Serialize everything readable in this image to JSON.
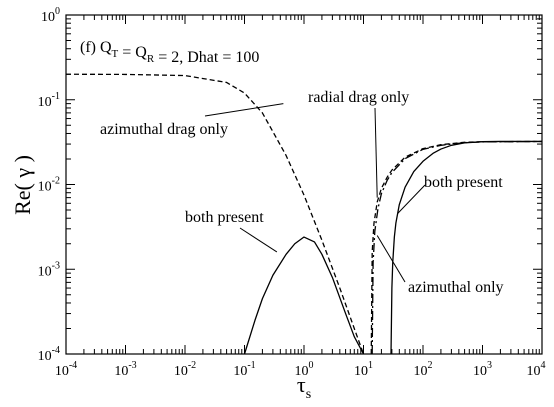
{
  "chart_data": {
    "type": "line",
    "panel_label": "(f) Q_T = Q_R = 2, Dhat = 100",
    "xlabel": "τ_s",
    "ylabel": "Re( γ )",
    "x_scale": "log",
    "y_scale": "log",
    "xlim": [
      0.0001,
      10000
    ],
    "ylim": [
      0.0001,
      1
    ],
    "x_ticks": [
      {
        "base": "10",
        "exp": "-4"
      },
      {
        "base": "10",
        "exp": "-3"
      },
      {
        "base": "10",
        "exp": "-2"
      },
      {
        "base": "10",
        "exp": "-1"
      },
      {
        "base": "10",
        "exp": "0"
      },
      {
        "base": "10",
        "exp": "1"
      },
      {
        "base": "10",
        "exp": "2"
      },
      {
        "base": "10",
        "exp": "3"
      },
      {
        "base": "10",
        "exp": "4"
      }
    ],
    "y_ticks": [
      {
        "base": "10",
        "exp": "-4"
      },
      {
        "base": "10",
        "exp": "-3"
      },
      {
        "base": "10",
        "exp": "-2"
      },
      {
        "base": "10",
        "exp": "-1"
      },
      {
        "base": "10",
        "exp": "0"
      }
    ],
    "grid": false,
    "series": [
      {
        "name": "azimuthal drag only",
        "style": "dashed",
        "x": [
          0.0001,
          0.001,
          0.01,
          0.05,
          0.1,
          0.2,
          0.5,
          1,
          2,
          4,
          7,
          10
        ],
        "y": [
          0.2,
          0.199,
          0.193,
          0.16,
          0.12,
          0.07,
          0.022,
          0.0075,
          0.0022,
          0.0006,
          0.0002,
          0.0001
        ]
      },
      {
        "name": "radial drag only",
        "style": "dashed",
        "x": [
          13.5,
          14,
          15,
          17,
          20,
          25,
          30,
          50,
          100,
          200,
          500,
          1000,
          10000
        ],
        "y": [
          0.0001,
          0.0016,
          0.0035,
          0.0062,
          0.009,
          0.0122,
          0.0148,
          0.021,
          0.0265,
          0.0295,
          0.0315,
          0.032,
          0.0322
        ]
      },
      {
        "name": "azimuthal only",
        "style": "dash-dot",
        "x": [
          14,
          14.5,
          15.5,
          17.5,
          20,
          25,
          30,
          50,
          100,
          200,
          500,
          1000,
          10000
        ],
        "y": [
          0.0001,
          0.0012,
          0.0028,
          0.0052,
          0.0078,
          0.0112,
          0.0138,
          0.0202,
          0.026,
          0.029,
          0.0312,
          0.0318,
          0.0322
        ]
      },
      {
        "name": "both present",
        "style": "solid",
        "segments": [
          {
            "x": [
              0.1,
              0.15,
              0.2,
              0.3,
              0.5,
              0.7,
              1,
              1.5,
              2,
              3,
              5,
              7,
              10
            ],
            "y": [
              0.0001,
              0.00025,
              0.00045,
              0.00085,
              0.0015,
              0.002,
              0.0024,
              0.0021,
              0.0015,
              0.0008,
              0.0003,
              0.00016,
              0.0001
            ]
          },
          {
            "x": [
              29,
              30,
              31,
              33,
              35,
              40,
              50,
              70,
              100,
              150,
              200,
              300,
              500,
              1000,
              2000,
              10000
            ],
            "y": [
              0.0001,
              0.0006,
              0.0012,
              0.0024,
              0.0035,
              0.0058,
              0.0093,
              0.0142,
              0.0188,
              0.0235,
              0.0262,
              0.029,
              0.031,
              0.032,
              0.0322,
              0.0322
            ]
          }
        ]
      }
    ],
    "annotations": [
      {
        "text": "azimuthal drag only",
        "points_to": {
          "x": 0.45,
          "y": 0.09
        }
      },
      {
        "text": "radial drag only",
        "points_to": {
          "x": 17,
          "y": 0.007
        }
      },
      {
        "text": "both present",
        "points_to": {
          "x": 37,
          "y": 0.0045
        }
      },
      {
        "text": "both present",
        "points_to": {
          "x": 0.35,
          "y": 0.0016
        }
      },
      {
        "text": "azimuthal only",
        "points_to": {
          "x": 17,
          "y": 0.0025
        }
      }
    ]
  }
}
